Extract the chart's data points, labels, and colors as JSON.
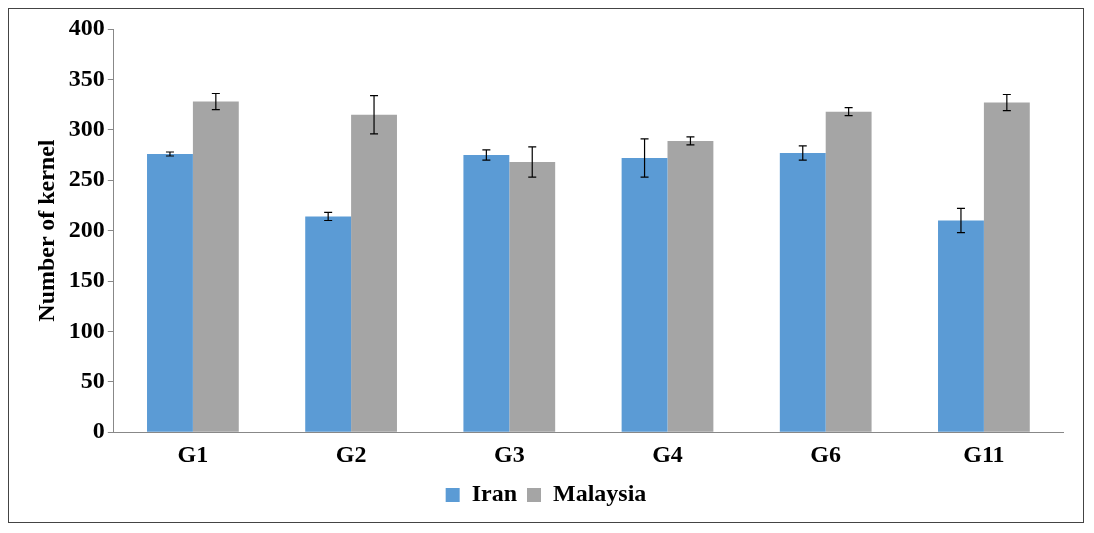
{
  "chart_data": {
    "type": "bar",
    "ylabel": "Number of kernel",
    "categories": [
      "G1",
      "G2",
      "G3",
      "G4",
      "G6",
      "G11"
    ],
    "series": [
      {
        "name": "Iran",
        "color": "#5b9bd5",
        "values": [
          276,
          214,
          275,
          272,
          277,
          210
        ],
        "errors": [
          2,
          4,
          5,
          19,
          7,
          12
        ]
      },
      {
        "name": "Malaysia",
        "color": "#a5a5a5",
        "values": [
          328,
          315,
          268,
          289,
          318,
          327
        ],
        "errors": [
          8,
          19,
          15,
          4,
          4,
          8
        ]
      }
    ],
    "ylim": [
      0,
      400
    ],
    "yticks": [
      0,
      50,
      100,
      150,
      200,
      250,
      300,
      350,
      400
    ],
    "grid": false,
    "legend": "bottom"
  }
}
